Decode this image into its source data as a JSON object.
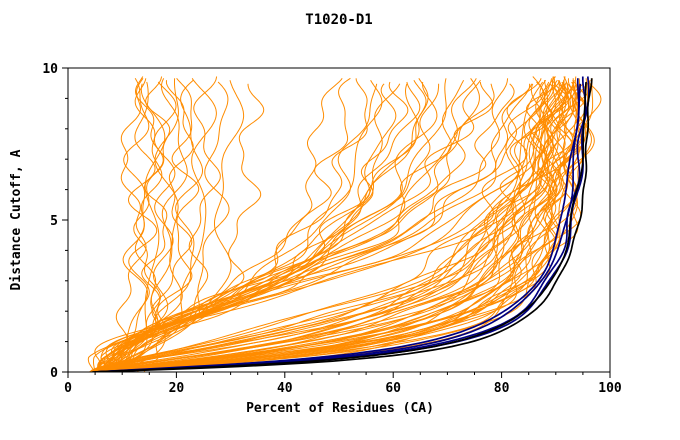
{
  "chart_data": {
    "type": "line",
    "title": "T1020-D1",
    "xlabel": "Percent of Residues (CA)",
    "ylabel": "Distance Cutoff, A",
    "xlim": [
      0,
      100
    ],
    "ylim": [
      0,
      10
    ],
    "x_ticks": [
      0,
      20,
      40,
      60,
      80,
      100
    ],
    "y_ticks": [
      0,
      5,
      10
    ],
    "x_minor_step": 5,
    "y_minor_step": 1,
    "grid": false,
    "legend": "none",
    "frame_color": "#000000",
    "curve_model": "x(y) = x0 + (pmax - x0) * y^b / (y^b + c); curve params are [x0, pmax, c, b]",
    "groups": [
      {
        "name": "prediction",
        "color": "#ff8c00",
        "width": 1,
        "jitter": 1.8,
        "curves": [
          [
            8,
            13,
            0.3,
            1.6
          ],
          [
            9,
            15,
            0.5,
            1.8
          ],
          [
            7,
            12,
            0.2,
            1.4
          ],
          [
            10,
            18,
            0.8,
            2.0
          ],
          [
            8,
            16,
            0.4,
            1.5
          ],
          [
            9,
            20,
            1.2,
            2.2
          ],
          [
            11,
            22,
            1.5,
            2.0
          ],
          [
            7,
            14,
            0.6,
            1.7
          ],
          [
            10,
            25,
            2.0,
            2.4
          ],
          [
            12,
            28,
            2.5,
            2.2
          ],
          [
            9,
            17,
            0.9,
            1.9
          ],
          [
            8,
            21,
            1.4,
            2.1
          ],
          [
            13,
            30,
            3.0,
            2.5
          ],
          [
            10,
            15,
            0.3,
            1.3
          ],
          [
            11,
            19,
            0.7,
            1.6
          ],
          [
            14,
            34,
            3.5,
            2.3
          ],
          [
            12,
            26,
            1.8,
            2.0
          ],
          [
            9,
            23,
            1.6,
            2.2
          ],
          [
            6,
            60,
            8,
            2.0
          ],
          [
            7,
            65,
            10,
            2.1
          ],
          [
            5,
            70,
            12,
            2.2
          ],
          [
            8,
            75,
            9,
            1.9
          ],
          [
            6,
            80,
            14,
            2.3
          ],
          [
            7,
            85,
            16,
            2.2
          ],
          [
            5,
            90,
            18,
            2.4
          ],
          [
            6,
            95,
            20,
            2.5
          ],
          [
            8,
            68,
            7,
            1.8
          ],
          [
            7,
            72,
            11,
            2.0
          ],
          [
            5,
            78,
            13,
            2.1
          ],
          [
            6,
            82,
            15,
            2.2
          ],
          [
            9,
            88,
            17,
            2.3
          ],
          [
            6,
            92,
            19,
            2.4
          ],
          [
            7,
            58,
            6,
            1.7
          ],
          [
            8,
            63,
            8.5,
            1.9
          ],
          [
            5,
            86,
            16,
            2.1
          ],
          [
            6,
            74,
            10,
            1.9
          ],
          [
            7,
            96,
            22,
            2.6
          ],
          [
            8,
            90,
            20,
            2.5
          ],
          [
            5,
            55,
            5,
            1.6
          ],
          [
            6,
            66,
            9,
            2.0
          ],
          [
            7,
            84,
            14,
            2.2
          ],
          [
            9,
            94,
            24,
            2.7
          ],
          [
            6,
            76,
            12,
            2.1
          ],
          [
            8,
            98,
            26,
            2.8
          ],
          [
            5,
            62,
            7.5,
            1.8
          ],
          [
            7,
            70,
            10.5,
            2.0
          ],
          [
            6,
            88,
            18,
            2.4
          ],
          [
            8,
            80,
            13,
            2.1
          ],
          [
            5,
            97,
            0.7,
            1.3
          ],
          [
            6,
            96,
            0.8,
            1.25
          ],
          [
            4,
            98,
            0.6,
            1.3
          ],
          [
            5,
            95,
            0.9,
            1.2
          ],
          [
            6,
            97,
            1.0,
            1.35
          ],
          [
            5,
            98,
            0.75,
            1.3
          ],
          [
            7,
            96,
            1.1,
            1.3
          ],
          [
            4,
            97,
            0.65,
            1.25
          ],
          [
            5,
            99,
            0.8,
            1.4
          ],
          [
            6,
            94,
            1.2,
            1.3
          ],
          [
            5,
            96,
            1.4,
            1.35
          ],
          [
            6,
            98,
            0.9,
            1.3
          ],
          [
            4,
            95,
            1.0,
            1.2
          ],
          [
            7,
            97,
            1.3,
            1.4
          ],
          [
            5,
            93,
            1.5,
            1.25
          ],
          [
            6,
            99,
            0.7,
            1.35
          ],
          [
            4,
            96,
            0.85,
            1.3
          ],
          [
            5,
            97,
            1.6,
            1.45
          ],
          [
            6,
            95,
            1.8,
            1.4
          ],
          [
            7,
            98,
            1.2,
            1.35
          ],
          [
            5,
            94,
            2.0,
            1.45
          ],
          [
            4,
            99,
            0.95,
            1.4
          ],
          [
            6,
            96,
            2.2,
            1.5
          ],
          [
            5,
            98,
            1.05,
            1.35
          ],
          [
            7,
            95,
            2.4,
            1.5
          ],
          [
            4,
            97,
            1.15,
            1.35
          ],
          [
            6,
            93,
            2.6,
            1.55
          ],
          [
            5,
            96,
            0.5,
            1.2
          ],
          [
            6,
            97,
            0.6,
            1.25
          ],
          [
            4,
            94,
            1.3,
            1.3
          ],
          [
            5,
            99,
            1.0,
            1.45
          ],
          [
            7,
            96,
            1.45,
            1.4
          ],
          [
            5,
            95,
            0.55,
            1.15
          ],
          [
            6,
            98,
            1.55,
            1.45
          ],
          [
            4,
            96,
            1.7,
            1.4
          ],
          [
            5,
            97,
            2.1,
            1.5
          ],
          [
            6,
            94,
            0.65,
            1.2
          ],
          [
            7,
            99,
            0.85,
            1.4
          ],
          [
            5,
            98,
            2.3,
            1.55
          ],
          [
            4,
            95,
            2.7,
            1.55
          ],
          [
            6,
            96,
            3.0,
            1.6
          ],
          [
            5,
            93,
            3.3,
            1.6
          ],
          [
            6,
            97,
            2.8,
            1.6
          ],
          [
            4,
            98,
            3.6,
            1.65
          ]
        ]
      },
      {
        "name": "highlight",
        "color": "#000080",
        "width": 1.7,
        "jitter": 0.35,
        "curves": [
          [
            5,
            98,
            0.42,
            1.18
          ],
          [
            5,
            97.5,
            0.46,
            1.2
          ],
          [
            5,
            98.5,
            0.4,
            1.17
          ],
          [
            5,
            97,
            0.5,
            1.22
          ]
        ]
      },
      {
        "name": "reference",
        "color": "#000000",
        "width": 1.7,
        "jitter": 0.3,
        "curves": [
          [
            4.5,
            99,
            0.35,
            1.15
          ],
          [
            5,
            98.3,
            0.4,
            1.18
          ]
        ]
      }
    ]
  }
}
